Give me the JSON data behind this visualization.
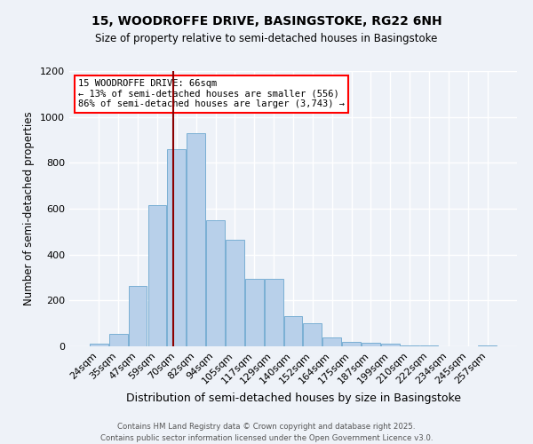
{
  "title1": "15, WOODROFFE DRIVE, BASINGSTOKE, RG22 6NH",
  "title2": "Size of property relative to semi-detached houses in Basingstoke",
  "xlabel": "Distribution of semi-detached houses by size in Basingstoke",
  "ylabel": "Number of semi-detached properties",
  "categories": [
    "24sqm",
    "35sqm",
    "47sqm",
    "59sqm",
    "70sqm",
    "82sqm",
    "94sqm",
    "105sqm",
    "117sqm",
    "129sqm",
    "140sqm",
    "152sqm",
    "164sqm",
    "175sqm",
    "187sqm",
    "199sqm",
    "210sqm",
    "222sqm",
    "234sqm",
    "245sqm",
    "257sqm"
  ],
  "values": [
    10,
    55,
    265,
    615,
    860,
    930,
    550,
    465,
    295,
    295,
    130,
    100,
    40,
    20,
    15,
    10,
    5,
    2,
    1,
    0,
    5
  ],
  "bar_color": "#b8d0ea",
  "bar_edge_color": "#7aafd4",
  "red_line_x": 3.82,
  "annotation_title": "15 WOODROFFE DRIVE: 66sqm",
  "annotation_line1": "← 13% of semi-detached houses are smaller (556)",
  "annotation_line2": "86% of semi-detached houses are larger (3,743) →",
  "ylim": [
    0,
    1200
  ],
  "yticks": [
    0,
    200,
    400,
    600,
    800,
    1000,
    1200
  ],
  "footer1": "Contains HM Land Registry data © Crown copyright and database right 2025.",
  "footer2": "Contains public sector information licensed under the Open Government Licence v3.0.",
  "background_color": "#eef2f8"
}
